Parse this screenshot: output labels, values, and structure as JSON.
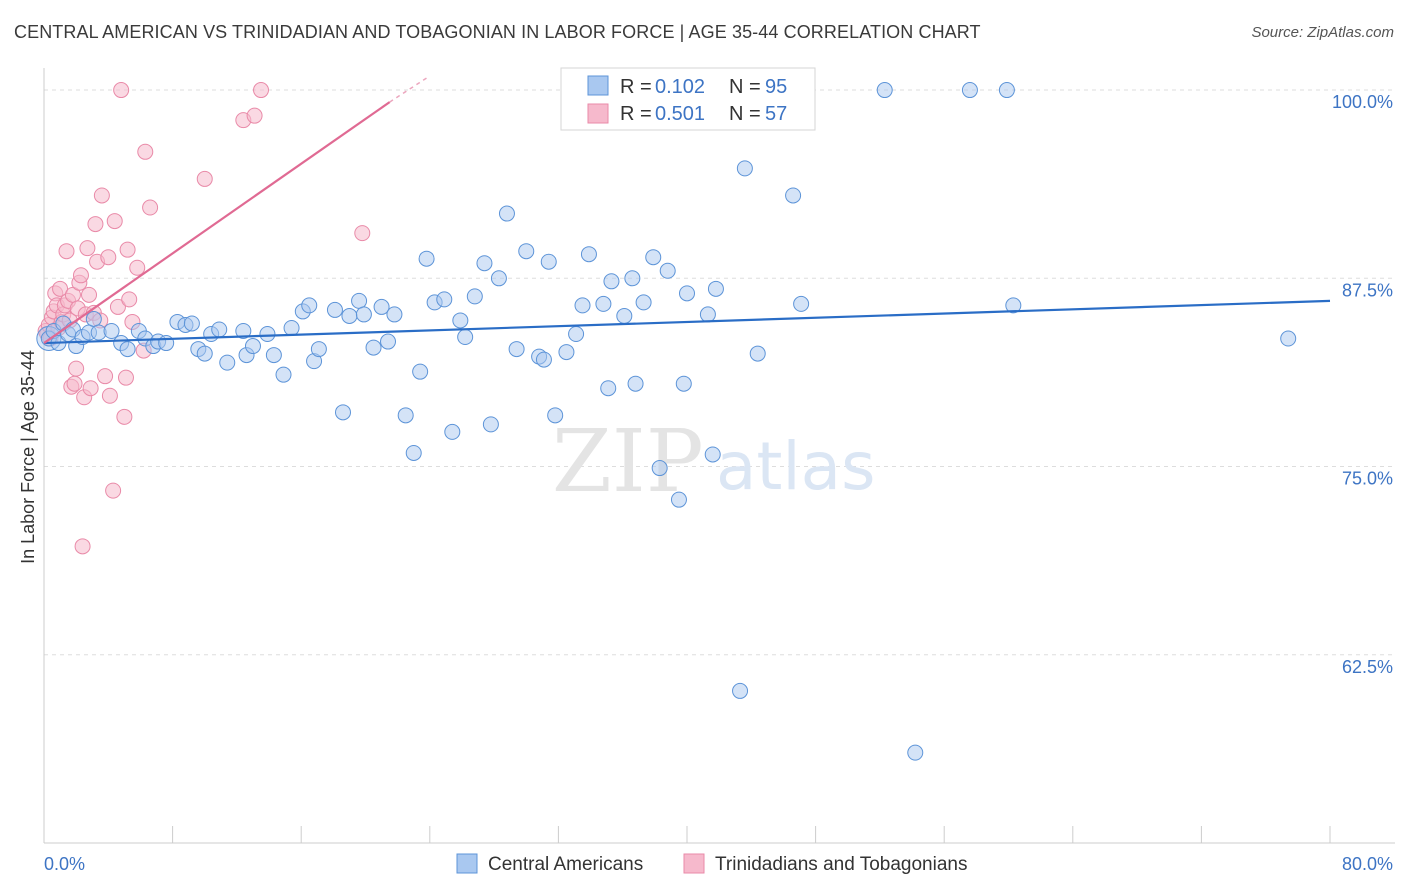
{
  "title": "CENTRAL AMERICAN VS TRINIDADIAN AND TOBAGONIAN IN LABOR FORCE | AGE 35-44 CORRELATION CHART",
  "source": "Source: ZipAtlas.com",
  "watermark": {
    "zip": "ZIP",
    "atlas": "atlas"
  },
  "colors": {
    "blue_fill": "#a9c8f0",
    "blue_stroke": "#5d94d8",
    "blue_line": "#2a6dc6",
    "pink_fill": "#f6b9cc",
    "pink_stroke": "#e98aa8",
    "pink_line": "#e06a93",
    "tick_text": "#3d74c4",
    "grid": "#dddddd"
  },
  "legend": {
    "r_label": "R =",
    "n_label": "N =",
    "series": [
      {
        "r": "0.102",
        "n": "95"
      },
      {
        "r": "0.501",
        "n": "57"
      }
    ]
  },
  "chart_data": {
    "type": "scatter",
    "title": "CENTRAL AMERICAN VS TRINIDADIAN AND TOBAGONIAN IN LABOR FORCE | AGE 35-44 CORRELATION CHART",
    "xlabel": "",
    "ylabel": "In Labor Force | Age 35-44",
    "xlim": [
      0,
      80
    ],
    "ylim": [
      50,
      101
    ],
    "x_tick_labels": [
      "0.0%",
      "80.0%"
    ],
    "y_ticks": [
      62.5,
      75.0,
      87.5,
      100.0
    ],
    "y_tick_labels": [
      "62.5%",
      "75.0%",
      "87.5%",
      "100.0%"
    ],
    "grid": true,
    "legend_position": "top-center",
    "series": [
      {
        "name": "Central Americans",
        "r": 0.102,
        "n": 95,
        "trend": {
          "x": [
            0,
            80
          ],
          "y": [
            83.2,
            86.0
          ]
        },
        "points": [
          [
            0.3,
            83.5
          ],
          [
            0.6,
            84.0
          ],
          [
            0.9,
            83.2
          ],
          [
            1.2,
            84.5
          ],
          [
            1.5,
            83.8
          ],
          [
            1.8,
            84.1
          ],
          [
            2.0,
            83.0
          ],
          [
            2.4,
            83.6
          ],
          [
            2.8,
            83.9
          ],
          [
            3.1,
            84.8
          ],
          [
            3.4,
            83.9
          ],
          [
            4.2,
            84.0
          ],
          [
            4.8,
            83.2
          ],
          [
            5.2,
            82.8
          ],
          [
            5.9,
            84.0
          ],
          [
            6.3,
            83.5
          ],
          [
            6.8,
            83.0
          ],
          [
            7.1,
            83.3
          ],
          [
            7.6,
            83.2
          ],
          [
            8.3,
            84.6
          ],
          [
            8.8,
            84.4
          ],
          [
            9.2,
            84.5
          ],
          [
            9.6,
            82.8
          ],
          [
            10.0,
            82.5
          ],
          [
            10.4,
            83.8
          ],
          [
            10.9,
            84.1
          ],
          [
            11.4,
            81.9
          ],
          [
            12.4,
            84.0
          ],
          [
            12.6,
            82.4
          ],
          [
            13.0,
            83.0
          ],
          [
            13.9,
            83.8
          ],
          [
            14.3,
            82.4
          ],
          [
            14.9,
            81.1
          ],
          [
            15.4,
            84.2
          ],
          [
            16.1,
            85.3
          ],
          [
            16.5,
            85.7
          ],
          [
            16.8,
            82.0
          ],
          [
            17.1,
            82.8
          ],
          [
            18.1,
            85.4
          ],
          [
            18.6,
            78.6
          ],
          [
            19.0,
            85.0
          ],
          [
            19.6,
            86.0
          ],
          [
            19.9,
            85.1
          ],
          [
            20.5,
            82.9
          ],
          [
            21.0,
            85.6
          ],
          [
            21.4,
            83.3
          ],
          [
            21.8,
            85.1
          ],
          [
            22.5,
            78.4
          ],
          [
            23.0,
            75.9
          ],
          [
            23.4,
            81.3
          ],
          [
            23.8,
            88.8
          ],
          [
            24.3,
            85.9
          ],
          [
            24.9,
            86.1
          ],
          [
            25.4,
            77.3
          ],
          [
            25.9,
            84.7
          ],
          [
            26.2,
            83.6
          ],
          [
            26.8,
            86.3
          ],
          [
            27.4,
            88.5
          ],
          [
            27.8,
            77.8
          ],
          [
            28.3,
            87.5
          ],
          [
            28.8,
            91.8
          ],
          [
            29.4,
            82.8
          ],
          [
            30.0,
            89.3
          ],
          [
            30.8,
            82.3
          ],
          [
            31.1,
            82.1
          ],
          [
            31.4,
            88.6
          ],
          [
            31.8,
            78.4
          ],
          [
            32.5,
            82.6
          ],
          [
            33.1,
            83.8
          ],
          [
            33.5,
            85.7
          ],
          [
            33.9,
            89.1
          ],
          [
            34.8,
            85.8
          ],
          [
            35.1,
            80.2
          ],
          [
            35.3,
            87.3
          ],
          [
            36.1,
            85.0
          ],
          [
            36.6,
            87.5
          ],
          [
            36.8,
            80.5
          ],
          [
            37.3,
            85.9
          ],
          [
            37.9,
            88.9
          ],
          [
            38.3,
            74.9
          ],
          [
            38.8,
            88.0
          ],
          [
            39.5,
            72.8
          ],
          [
            39.8,
            80.5
          ],
          [
            40.0,
            86.5
          ],
          [
            41.3,
            85.1
          ],
          [
            41.6,
            75.8
          ],
          [
            41.8,
            86.8
          ],
          [
            43.3,
            60.1
          ],
          [
            43.6,
            94.8
          ],
          [
            44.4,
            82.5
          ],
          [
            46.6,
            93.0
          ],
          [
            47.1,
            85.8
          ],
          [
            52.3,
            100.0
          ],
          [
            54.2,
            56.0
          ],
          [
            57.6,
            100.0
          ],
          [
            59.9,
            100.0
          ],
          [
            60.3,
            85.7
          ],
          [
            77.4,
            83.5
          ]
        ]
      },
      {
        "name": "Trinidadians and Tobagonians",
        "r": 0.501,
        "n": 57,
        "trend": {
          "x": [
            0,
            21.5
          ],
          "y": [
            83.2,
            99.2
          ]
        },
        "trend_dash": {
          "x": [
            21.5,
            23.8
          ],
          "y": [
            99.2,
            100.8
          ]
        },
        "points": [
          [
            0.1,
            84.0
          ],
          [
            0.2,
            83.8
          ],
          [
            0.3,
            84.4
          ],
          [
            0.4,
            83.5
          ],
          [
            0.5,
            84.9
          ],
          [
            0.6,
            85.3
          ],
          [
            0.7,
            86.5
          ],
          [
            0.8,
            85.7
          ],
          [
            0.9,
            84.2
          ],
          [
            1.0,
            86.8
          ],
          [
            1.1,
            84.6
          ],
          [
            1.2,
            85.1
          ],
          [
            1.3,
            85.7
          ],
          [
            1.4,
            89.3
          ],
          [
            1.5,
            86.0
          ],
          [
            1.6,
            84.7
          ],
          [
            1.7,
            80.3
          ],
          [
            1.8,
            86.4
          ],
          [
            1.9,
            80.5
          ],
          [
            2.0,
            81.5
          ],
          [
            2.1,
            85.5
          ],
          [
            2.2,
            87.2
          ],
          [
            2.3,
            87.7
          ],
          [
            2.4,
            69.7
          ],
          [
            2.5,
            79.6
          ],
          [
            2.6,
            85.1
          ],
          [
            2.7,
            89.5
          ],
          [
            2.8,
            86.4
          ],
          [
            2.9,
            80.2
          ],
          [
            3.1,
            85.2
          ],
          [
            3.2,
            91.1
          ],
          [
            3.3,
            88.6
          ],
          [
            3.5,
            84.7
          ],
          [
            3.6,
            93.0
          ],
          [
            3.8,
            81.0
          ],
          [
            4.0,
            88.9
          ],
          [
            4.1,
            79.7
          ],
          [
            4.3,
            73.4
          ],
          [
            4.4,
            91.3
          ],
          [
            4.6,
            85.6
          ],
          [
            4.8,
            100.0
          ],
          [
            5.0,
            78.3
          ],
          [
            5.1,
            80.9
          ],
          [
            5.2,
            89.4
          ],
          [
            5.3,
            86.1
          ],
          [
            5.5,
            84.6
          ],
          [
            5.8,
            88.2
          ],
          [
            6.2,
            82.7
          ],
          [
            6.3,
            95.9
          ],
          [
            6.6,
            92.2
          ],
          [
            10.0,
            94.1
          ],
          [
            12.4,
            98.0
          ],
          [
            13.1,
            98.3
          ],
          [
            13.5,
            100.0
          ],
          [
            19.8,
            90.5
          ]
        ]
      }
    ]
  },
  "bottom_legend": [
    "Central Americans",
    "Trinidadians and Tobagonians"
  ]
}
